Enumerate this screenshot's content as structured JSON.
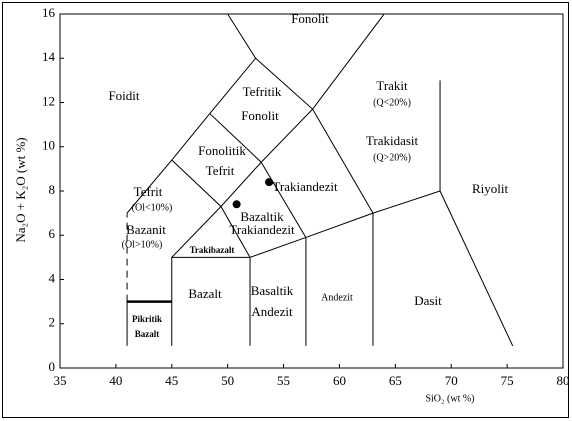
{
  "chart_data": {
    "type": "scatter",
    "x_label": "SiO₂ (wt %)",
    "y_label": "Na₂O + K₂O (wt %)",
    "xlim": [
      35,
      80
    ],
    "ylim": [
      0,
      16
    ],
    "xticks": [
      35,
      40,
      45,
      50,
      55,
      60,
      65,
      70,
      75,
      80
    ],
    "yticks": [
      0,
      2,
      4,
      6,
      8,
      10,
      12,
      14,
      16
    ],
    "color": "#000000",
    "series": [
      {
        "x": [
          50.8,
          53.7
        ],
        "values": [
          7.4,
          8.4
        ]
      }
    ],
    "boundaries": [
      {
        "x": [
          41,
          45
        ],
        "y": [
          3,
          3
        ],
        "thick": true
      },
      {
        "x": [
          41,
          41
        ],
        "y": [
          1,
          3
        ]
      },
      {
        "x": [
          41,
          41
        ],
        "y": [
          3,
          7
        ],
        "dash": true
      },
      {
        "x": [
          45,
          45,
          52,
          57,
          63,
          69,
          69
        ],
        "y": [
          1,
          5,
          5,
          5.9,
          7,
          8,
          13
        ]
      },
      {
        "x": [
          52,
          52
        ],
        "y": [
          1,
          5
        ]
      },
      {
        "x": [
          57,
          57
        ],
        "y": [
          1,
          5.9
        ]
      },
      {
        "x": [
          63,
          63
        ],
        "y": [
          1,
          7
        ]
      },
      {
        "x": [
          69,
          75.5
        ],
        "y": [
          8,
          1
        ]
      },
      {
        "x": [
          41,
          45,
          48.4,
          52.5,
          50
        ],
        "y": [
          7,
          9.4,
          11.5,
          14,
          16
        ]
      },
      {
        "x": [
          45,
          49.4,
          52
        ],
        "y": [
          9.4,
          7.3,
          5
        ]
      },
      {
        "x": [
          45,
          49.4
        ],
        "y": [
          5,
          7.3
        ]
      },
      {
        "x": [
          49.4,
          53,
          57.6,
          64
        ],
        "y": [
          7.3,
          9.3,
          11.7,
          16
        ]
      },
      {
        "x": [
          48.4,
          53,
          57
        ],
        "y": [
          11.5,
          9.3,
          5.9
        ]
      },
      {
        "x": [
          52.5,
          57.6,
          63
        ],
        "y": [
          14,
          11.7,
          7
        ]
      }
    ],
    "annotations": [
      "Fonolit",
      "Foidit",
      "Tefritik",
      "Fonolit",
      "Trakit",
      "(Q<20%)",
      "Trakidasit",
      "(Q>20%)",
      "Fonolitik",
      "Tefrit",
      "Trakiandezit",
      "Bazaltik",
      "Trakiandezit",
      "Tefrit",
      "(Ol<10%)",
      "Bazanit",
      "(Ol>10%)",
      "Trakibazalt",
      "Riyolit",
      "Bazalt",
      "Basaltik",
      "Andezit",
      "Andezit",
      "Dasit",
      "Pikritik",
      "Bazalt"
    ]
  }
}
